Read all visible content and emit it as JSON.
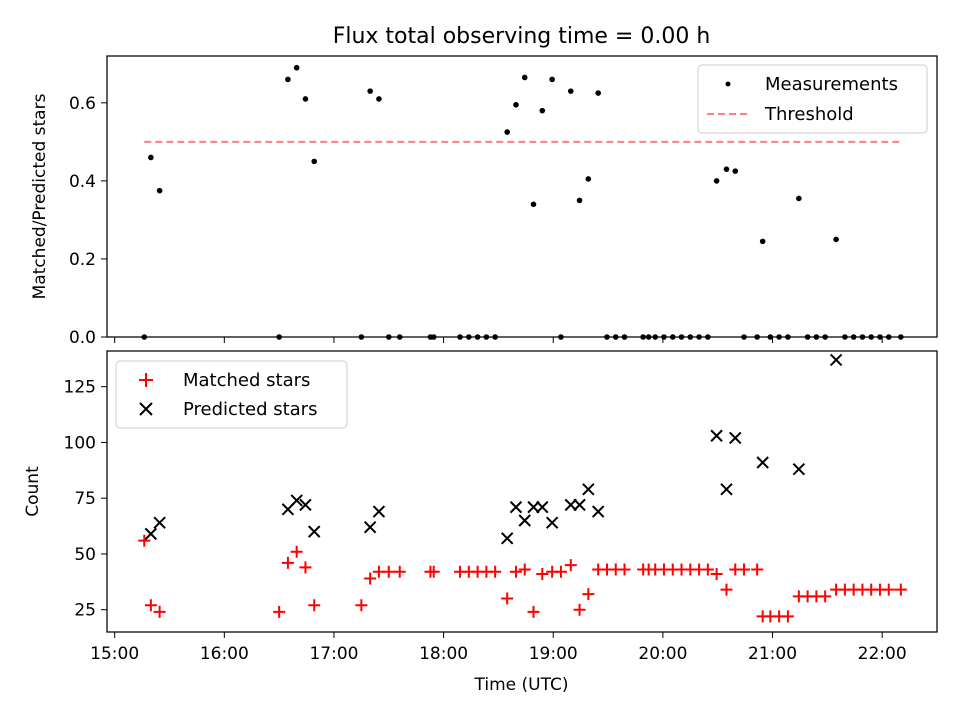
{
  "title": "Flux total observing time = 0.00 h",
  "chart_data": [
    {
      "type": "scatter",
      "ylabel": "Matched/Predicted stars",
      "xlim": [
        14.93,
        22.5
      ],
      "ylim": [
        0,
        0.72
      ],
      "yticks": [
        0.0,
        0.2,
        0.4,
        0.6
      ],
      "ytick_labels": [
        "0.0",
        "0.2",
        "0.4",
        "0.6"
      ],
      "legend": {
        "position": "top-right",
        "entries": [
          "Measurements",
          "Threshold"
        ]
      },
      "threshold": {
        "name": "Threshold",
        "y": 0.5,
        "x": [
          15.27,
          22.17
        ],
        "color": "#ff7f7f"
      },
      "series": [
        {
          "name": "Measurements",
          "color": "#000000",
          "points": [
            [
              15.27,
              0.0
            ],
            [
              15.33,
              0.46
            ],
            [
              15.41,
              0.375
            ],
            [
              16.5,
              0.0
            ],
            [
              16.58,
              0.66
            ],
            [
              16.66,
              0.69
            ],
            [
              16.74,
              0.61
            ],
            [
              16.82,
              0.45
            ],
            [
              17.25,
              0.0
            ],
            [
              17.33,
              0.63
            ],
            [
              17.41,
              0.61
            ],
            [
              17.5,
              0.0
            ],
            [
              17.6,
              0.0
            ],
            [
              17.88,
              0.0
            ],
            [
              17.91,
              0.0
            ],
            [
              18.15,
              0.0
            ],
            [
              18.23,
              0.0
            ],
            [
              18.31,
              0.0
            ],
            [
              18.39,
              0.0
            ],
            [
              18.47,
              0.0
            ],
            [
              18.58,
              0.525
            ],
            [
              18.66,
              0.595
            ],
            [
              18.74,
              0.665
            ],
            [
              18.82,
              0.34
            ],
            [
              18.9,
              0.58
            ],
            [
              18.99,
              0.66
            ],
            [
              19.07,
              0.0
            ],
            [
              19.16,
              0.63
            ],
            [
              19.24,
              0.35
            ],
            [
              19.32,
              0.405
            ],
            [
              19.41,
              0.625
            ],
            [
              19.49,
              0.0
            ],
            [
              19.57,
              0.0
            ],
            [
              19.65,
              0.0
            ],
            [
              19.82,
              0.0
            ],
            [
              19.87,
              0.0
            ],
            [
              19.93,
              0.0
            ],
            [
              20.01,
              0.0
            ],
            [
              20.09,
              0.0
            ],
            [
              20.17,
              0.0
            ],
            [
              20.25,
              0.0
            ],
            [
              20.33,
              0.0
            ],
            [
              20.41,
              0.0
            ],
            [
              20.49,
              0.4
            ],
            [
              20.58,
              0.43
            ],
            [
              20.66,
              0.425
            ],
            [
              20.74,
              0.0
            ],
            [
              20.86,
              0.0
            ],
            [
              20.91,
              0.245
            ],
            [
              20.98,
              0.0
            ],
            [
              21.06,
              0.0
            ],
            [
              21.14,
              0.0
            ],
            [
              21.24,
              0.355
            ],
            [
              21.32,
              0.0
            ],
            [
              21.4,
              0.0
            ],
            [
              21.48,
              0.0
            ],
            [
              21.58,
              0.25
            ],
            [
              21.66,
              0.0
            ],
            [
              21.74,
              0.0
            ],
            [
              21.82,
              0.0
            ],
            [
              21.9,
              0.0
            ],
            [
              21.98,
              0.0
            ],
            [
              22.06,
              0.0
            ],
            [
              22.17,
              0.0
            ]
          ]
        }
      ]
    },
    {
      "type": "scatter",
      "xlabel": "Time (UTC)",
      "ylabel": "Count",
      "xlim": [
        14.93,
        22.5
      ],
      "ylim": [
        15,
        141
      ],
      "xticks": [
        15,
        16,
        17,
        18,
        19,
        20,
        21,
        22
      ],
      "xtick_labels": [
        "15:00",
        "16:00",
        "17:00",
        "18:00",
        "19:00",
        "20:00",
        "21:00",
        "22:00"
      ],
      "yticks": [
        25,
        50,
        75,
        100,
        125
      ],
      "ytick_labels": [
        "25",
        "50",
        "75",
        "100",
        "125"
      ],
      "legend": {
        "position": "top-left",
        "entries": [
          "Matched stars",
          "Predicted stars"
        ]
      },
      "series": [
        {
          "name": "Matched stars",
          "marker": "+",
          "color": "#ff0000",
          "points": [
            [
              15.27,
              56
            ],
            [
              15.33,
              27
            ],
            [
              15.41,
              24
            ],
            [
              16.5,
              24
            ],
            [
              16.58,
              46
            ],
            [
              16.66,
              51
            ],
            [
              16.74,
              44
            ],
            [
              16.82,
              27
            ],
            [
              17.25,
              27
            ],
            [
              17.33,
              39
            ],
            [
              17.41,
              42
            ],
            [
              17.5,
              42
            ],
            [
              17.6,
              42
            ],
            [
              17.88,
              42
            ],
            [
              17.91,
              42
            ],
            [
              18.15,
              42
            ],
            [
              18.23,
              42
            ],
            [
              18.31,
              42
            ],
            [
              18.39,
              42
            ],
            [
              18.47,
              42
            ],
            [
              18.58,
              30
            ],
            [
              18.66,
              42
            ],
            [
              18.74,
              43
            ],
            [
              18.82,
              24
            ],
            [
              18.9,
              41
            ],
            [
              18.99,
              42
            ],
            [
              19.07,
              42
            ],
            [
              19.16,
              45
            ],
            [
              19.24,
              25
            ],
            [
              19.32,
              32
            ],
            [
              19.41,
              43
            ],
            [
              19.49,
              43
            ],
            [
              19.57,
              43
            ],
            [
              19.65,
              43
            ],
            [
              19.82,
              43
            ],
            [
              19.87,
              43
            ],
            [
              19.93,
              43
            ],
            [
              20.01,
              43
            ],
            [
              20.09,
              43
            ],
            [
              20.17,
              43
            ],
            [
              20.25,
              43
            ],
            [
              20.33,
              43
            ],
            [
              20.41,
              43
            ],
            [
              20.49,
              41
            ],
            [
              20.58,
              34
            ],
            [
              20.66,
              43
            ],
            [
              20.74,
              43
            ],
            [
              20.86,
              43
            ],
            [
              20.91,
              22
            ],
            [
              20.98,
              22
            ],
            [
              21.06,
              22
            ],
            [
              21.14,
              22
            ],
            [
              21.24,
              31
            ],
            [
              21.32,
              31
            ],
            [
              21.4,
              31
            ],
            [
              21.48,
              31
            ],
            [
              21.58,
              34
            ],
            [
              21.66,
              34
            ],
            [
              21.74,
              34
            ],
            [
              21.82,
              34
            ],
            [
              21.9,
              34
            ],
            [
              21.98,
              34
            ],
            [
              22.06,
              34
            ],
            [
              22.17,
              34
            ]
          ]
        },
        {
          "name": "Predicted stars",
          "marker": "x",
          "color": "#000000",
          "points": [
            [
              15.33,
              59
            ],
            [
              15.41,
              64
            ],
            [
              16.58,
              70
            ],
            [
              16.66,
              74
            ],
            [
              16.74,
              72
            ],
            [
              16.82,
              60
            ],
            [
              17.33,
              62
            ],
            [
              17.41,
              69
            ],
            [
              18.58,
              57
            ],
            [
              18.66,
              71
            ],
            [
              18.74,
              65
            ],
            [
              18.82,
              71
            ],
            [
              18.9,
              71
            ],
            [
              18.99,
              64
            ],
            [
              19.16,
              72
            ],
            [
              19.24,
              72
            ],
            [
              19.32,
              79
            ],
            [
              19.41,
              69
            ],
            [
              20.49,
              103
            ],
            [
              20.58,
              79
            ],
            [
              20.66,
              102
            ],
            [
              20.91,
              91
            ],
            [
              21.24,
              88
            ],
            [
              21.58,
              137
            ]
          ]
        }
      ]
    }
  ]
}
